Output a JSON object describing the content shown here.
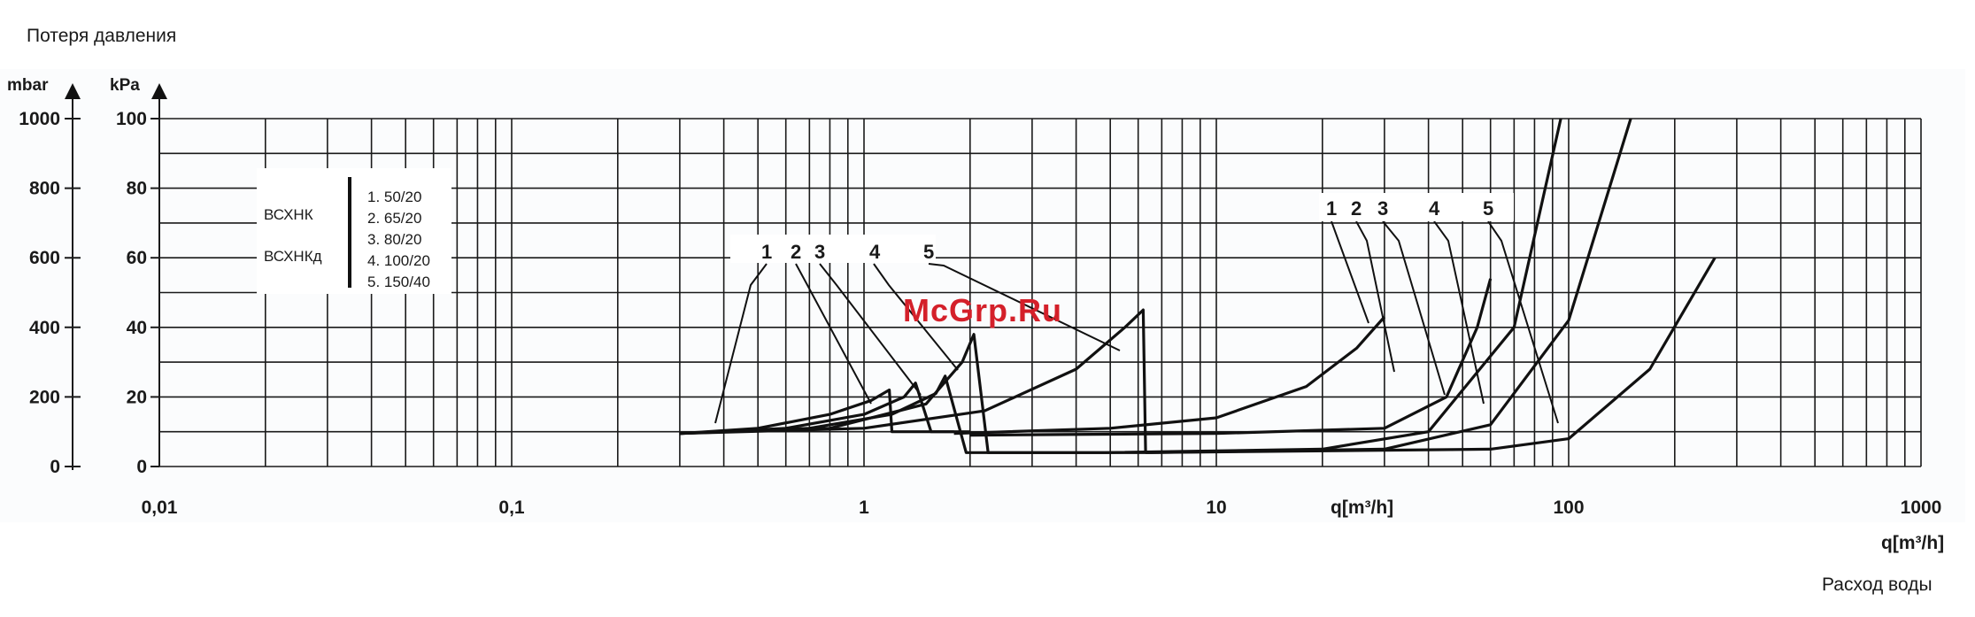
{
  "chart_data": {
    "type": "line",
    "title": "Потеря давления",
    "xlabel": "q[m³/h]",
    "xlabel_secondary": "Расход воды",
    "y_units": [
      "mbar",
      "kPa"
    ],
    "x_scale": "log",
    "xlim": [
      0.01,
      1000
    ],
    "ylim": [
      0,
      100
    ],
    "x_tick_labels": [
      "0,01",
      "0,1",
      "1",
      "10",
      "100",
      "1000"
    ],
    "x_ticks": [
      0.01,
      0.1,
      1,
      10,
      100,
      1000
    ],
    "y_ticks_kpa": [
      0,
      20,
      40,
      60,
      80,
      100
    ],
    "y_tick_labels_kpa": [
      "0",
      "20",
      "40",
      "60",
      "80",
      "100"
    ],
    "y_tick_labels_mbar": [
      "0",
      "200",
      "400",
      "600",
      "800",
      "1000"
    ],
    "grid": true,
    "legend": {
      "groups": [
        "ВСХНК",
        "ВСХНКд"
      ],
      "items": [
        "1. 50/20",
        "2. 65/20",
        "3. 80/20",
        "4. 100/20",
        "5. 150/40"
      ]
    },
    "curve_labels_left": [
      "1",
      "2",
      "3",
      "4",
      "5"
    ],
    "curve_labels_right": [
      "1",
      "2",
      "3",
      "4",
      "5"
    ],
    "watermark": "McGrp.Ru",
    "series": [
      {
        "name": "1",
        "small_meter": [
          [
            0.3,
            9.5
          ],
          [
            0.5,
            11
          ],
          [
            0.8,
            15
          ],
          [
            1.05,
            19
          ],
          [
            1.18,
            22
          ],
          [
            1.2,
            10
          ],
          [
            1.8,
            10
          ]
        ],
        "large_meter": [
          [
            1.8,
            9.5
          ],
          [
            5,
            11
          ],
          [
            10,
            14
          ],
          [
            18,
            23
          ],
          [
            25,
            34
          ],
          [
            30,
            43
          ]
        ]
      },
      {
        "name": "2",
        "small_meter": [
          [
            0.3,
            9.5
          ],
          [
            0.6,
            11
          ],
          [
            1.0,
            15
          ],
          [
            1.3,
            20
          ],
          [
            1.4,
            24
          ],
          [
            1.55,
            10
          ],
          [
            2.0,
            10
          ]
        ],
        "large_meter": [
          [
            2.0,
            9
          ],
          [
            10,
            9.5
          ],
          [
            30,
            11
          ],
          [
            45,
            20
          ],
          [
            55,
            40
          ],
          [
            60,
            54
          ]
        ]
      },
      {
        "name": "3",
        "small_meter": [
          [
            0.3,
            9.5
          ],
          [
            0.7,
            11
          ],
          [
            1.2,
            15
          ],
          [
            1.6,
            21
          ],
          [
            1.7,
            26
          ],
          [
            1.95,
            4
          ],
          [
            4.8,
            4
          ]
        ],
        "large_meter": [
          [
            4.8,
            4
          ],
          [
            20,
            5
          ],
          [
            40,
            10
          ],
          [
            70,
            40
          ],
          [
            95,
            100
          ]
        ]
      },
      {
        "name": "4",
        "small_meter": [
          [
            0.3,
            9.5
          ],
          [
            0.8,
            11
          ],
          [
            1.5,
            18
          ],
          [
            1.9,
            30
          ],
          [
            2.05,
            38
          ],
          [
            2.25,
            4
          ],
          [
            6.5,
            4
          ]
        ],
        "large_meter": [
          [
            6.5,
            4
          ],
          [
            30,
            5
          ],
          [
            60,
            12
          ],
          [
            100,
            42
          ],
          [
            150,
            100
          ]
        ]
      },
      {
        "name": "5",
        "small_meter": [
          [
            0.3,
            9.5
          ],
          [
            1,
            11
          ],
          [
            2.2,
            16
          ],
          [
            4,
            28
          ],
          [
            5.5,
            40
          ],
          [
            6.2,
            45
          ],
          [
            6.3,
            4
          ]
        ],
        "large_meter": [
          [
            6.3,
            4
          ],
          [
            60,
            5
          ],
          [
            100,
            8
          ],
          [
            170,
            28
          ],
          [
            260,
            60
          ]
        ]
      }
    ]
  }
}
